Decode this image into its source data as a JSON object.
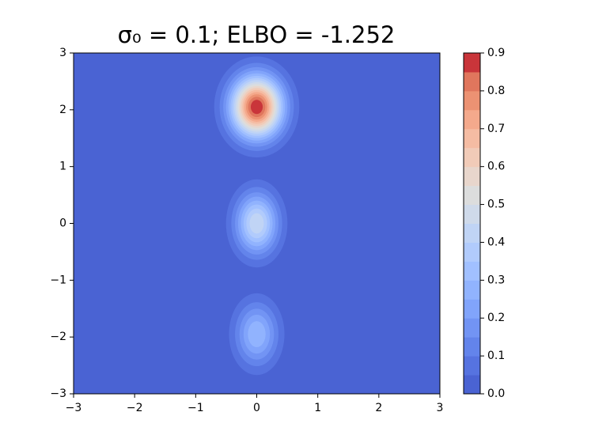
{
  "chart_data": {
    "type": "contour",
    "title": "σ₀ = 0.1; ELBO = -1.252",
    "xlim": [
      -3,
      3
    ],
    "ylim": [
      -3,
      3
    ],
    "xticks": [
      {
        "value": -3,
        "label": "−3"
      },
      {
        "value": -2,
        "label": "−2"
      },
      {
        "value": -1,
        "label": "−1"
      },
      0,
      1,
      2,
      3
    ],
    "yticks": [
      {
        "value": -3,
        "label": "−3"
      },
      {
        "value": -2,
        "label": "−2"
      },
      {
        "value": -1,
        "label": "−1"
      },
      0,
      1,
      2,
      3
    ],
    "components": [
      {
        "x": 0,
        "y": 2.05,
        "peak": 0.9,
        "sx": 0.29,
        "sy": 0.37
      },
      {
        "x": 0,
        "y": 0,
        "peak": 0.45,
        "sx": 0.24,
        "sy": 0.37
      },
      {
        "x": 0,
        "y": -1.95,
        "peak": 0.3,
        "sx": 0.24,
        "sy": 0.38
      }
    ],
    "levels": [
      0,
      0.05,
      0.1,
      0.15,
      0.2,
      0.25,
      0.3,
      0.35,
      0.4,
      0.45,
      0.5,
      0.55,
      0.6,
      0.65,
      0.7,
      0.75,
      0.8,
      0.85,
      0.9
    ],
    "colors": [
      "#4a63d3",
      "#5673e0",
      "#6384eb",
      "#7294f4",
      "#81a4fb",
      "#91b3fe",
      "#a1c0ff",
      "#b1cbfc",
      "#c0d4f5",
      "#cfdaea",
      "#dcdddd",
      "#e8d6cc",
      "#f1cbb8",
      "#f5bca3",
      "#f4a98c",
      "#ec9273",
      "#e0765d",
      "#c9353a"
    ],
    "cticks": [
      {
        "value": 0,
        "label": "0.0"
      },
      {
        "value": 0.1,
        "label": "0.1"
      },
      {
        "value": 0.2,
        "label": "0.2"
      },
      {
        "value": 0.3,
        "label": "0.3"
      },
      {
        "value": 0.4,
        "label": "0.4"
      },
      {
        "value": 0.5,
        "label": "0.5"
      },
      {
        "value": 0.6,
        "label": "0.6"
      },
      {
        "value": 0.7,
        "label": "0.7"
      },
      {
        "value": 0.8,
        "label": "0.8"
      },
      {
        "value": 0.9,
        "label": "0.9"
      }
    ]
  }
}
